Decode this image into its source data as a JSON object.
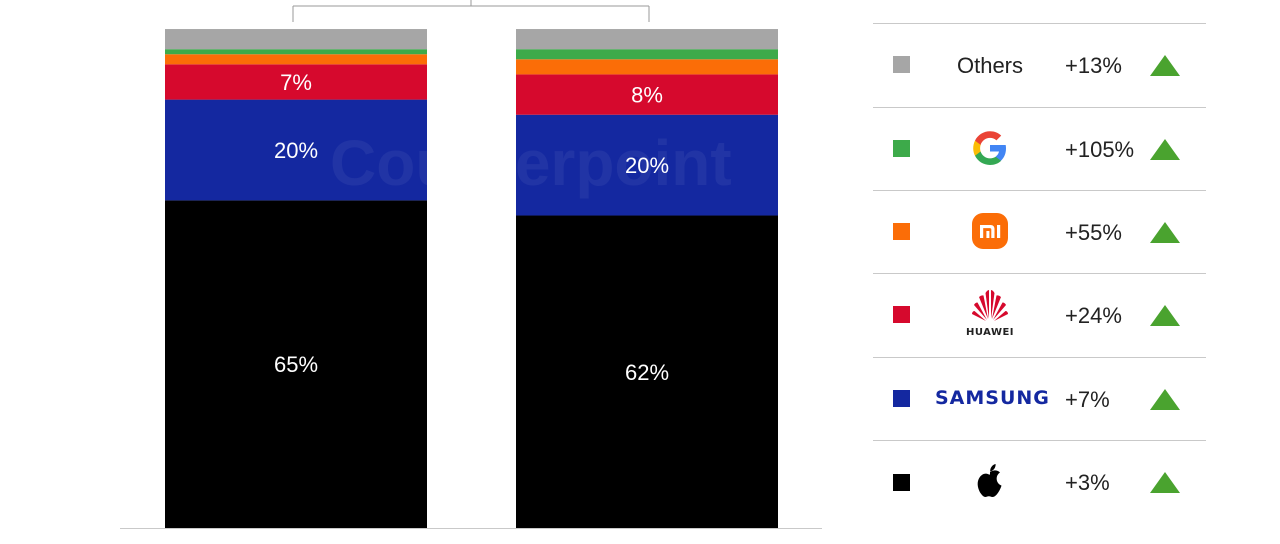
{
  "chart_data": {
    "type": "bar",
    "stacked": true,
    "normalized_percent": true,
    "title": "",
    "xlabel": "",
    "ylabel": "",
    "ylim": [
      0,
      100
    ],
    "grid": false,
    "legend_position": "right",
    "categories": [
      "",
      ""
    ],
    "series": [
      {
        "key": "apple",
        "color": "#000000",
        "values": [
          65,
          62
        ]
      },
      {
        "key": "samsung",
        "color": "#1428a0",
        "values": [
          20,
          20
        ]
      },
      {
        "key": "huawei",
        "color": "#d6092d",
        "values": [
          7,
          8
        ]
      },
      {
        "key": "xiaomi",
        "color": "#fb6d07",
        "values": [
          2,
          3
        ]
      },
      {
        "key": "google",
        "color": "#3daa4a",
        "values": [
          1,
          2
        ]
      },
      {
        "key": "others",
        "color": "#a6a6a6",
        "values": [
          4,
          4
        ]
      }
    ],
    "data_labels": [
      [
        {
          "series": "apple",
          "text": "65%"
        },
        {
          "series": "samsung",
          "text": "20%"
        },
        {
          "series": "huawei",
          "text": "7%"
        }
      ],
      [
        {
          "series": "apple",
          "text": "62%"
        },
        {
          "series": "samsung",
          "text": "20%"
        },
        {
          "series": "huawei",
          "text": "8%"
        }
      ]
    ]
  },
  "legend": {
    "rows": [
      {
        "brand": "others",
        "brand_label": "Others",
        "logo_icon": "",
        "color": "#a6a6a6",
        "change": "+13%",
        "trend_icon": "triangle-up-icon"
      },
      {
        "brand": "google",
        "brand_label": "",
        "logo_icon": "google-logo-icon",
        "color": "#3daa4a",
        "change": "+105%",
        "trend_icon": "triangle-up-icon"
      },
      {
        "brand": "xiaomi",
        "brand_label": "",
        "logo_icon": "xiaomi-logo-icon",
        "color": "#fb6d07",
        "change": "+55%",
        "trend_icon": "triangle-up-icon"
      },
      {
        "brand": "huawei",
        "brand_label": "HUAWEI",
        "logo_icon": "huawei-logo-icon",
        "color": "#d6092d",
        "change": "+24%",
        "trend_icon": "triangle-up-icon"
      },
      {
        "brand": "samsung",
        "brand_label": "SAMSUNG",
        "logo_icon": "",
        "color": "#1428a0",
        "change": "+7%",
        "trend_icon": "triangle-up-icon"
      },
      {
        "brand": "apple",
        "brand_label": "",
        "logo_icon": "apple-logo-icon",
        "color": "#000000",
        "change": "+3%",
        "trend_icon": "triangle-up-icon"
      }
    ],
    "trend_color": "#4aa32f"
  },
  "watermark": {
    "text": "Counterpoint"
  }
}
